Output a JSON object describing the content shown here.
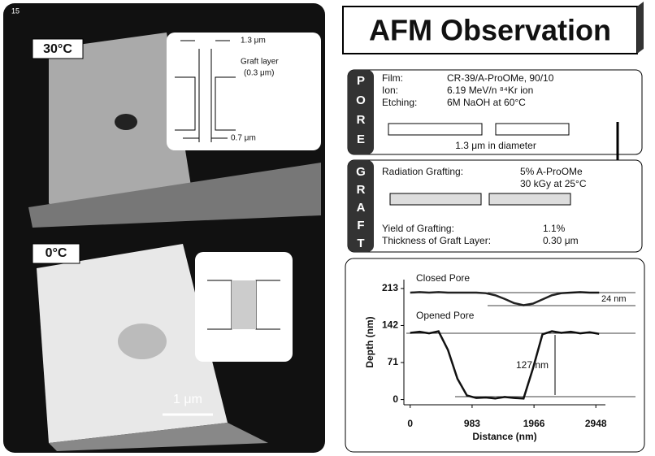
{
  "left": {
    "page_number": "15",
    "label_30": "30°C",
    "label_0": "0°C",
    "scale_bar": "1 μm",
    "inset": {
      "width": "1.3 μm",
      "graft_layer": "Graft layer",
      "graft_thickness": "(0.3 μm)",
      "inner_width": "0.7 μm"
    }
  },
  "title": "AFM Observation",
  "pore": {
    "tab": [
      "P",
      "O",
      "R",
      "E"
    ],
    "rows": [
      [
        "Film:",
        "CR-39/A-ProOMe, 90/10"
      ],
      [
        "Ion:",
        "6.19 MeV/n ⁸⁴Kr ion"
      ],
      [
        "Etching:",
        "6M NaOH at 60°C"
      ]
    ],
    "caption": "1.3 μm in diameter"
  },
  "graft": {
    "tab": [
      "G",
      "R",
      "A",
      "F",
      "T"
    ],
    "method": "Radiation Grafting:",
    "monomer": "5% A-ProOMe",
    "dose": "30 kGy at 25°C",
    "rows": [
      [
        "Yield of Grafting:",
        "1.1%"
      ],
      [
        "Thickness of Graft Layer:",
        "0.30 μm"
      ]
    ]
  },
  "chart_data": {
    "type": "line",
    "x_label": "Distance (nm)",
    "y_label": "Depth (nm)",
    "x": [
      0,
      150,
      300,
      450,
      600,
      750,
      900,
      1050,
      1200,
      1350,
      1500,
      1650,
      1800,
      1950,
      2100,
      2250,
      2400,
      2550,
      2700,
      2850,
      3000
    ],
    "series": [
      {
        "name": "Closed Pore",
        "color": "#222",
        "values": [
          205,
          206,
          205,
          206,
          205,
          205,
          205,
          205,
          204,
          200,
          193,
          185,
          181,
          184,
          192,
          200,
          204,
          205,
          206,
          205,
          205
        ]
      },
      {
        "name": "Opened Pore",
        "color": "#111",
        "values": [
          128,
          130,
          127,
          131,
          95,
          40,
          8,
          3,
          4,
          2,
          5,
          3,
          2,
          60,
          125,
          131,
          128,
          130,
          127,
          129,
          126
        ]
      }
    ],
    "xlim": [
      -100,
      3100
    ],
    "ylim": [
      -10,
      230
    ],
    "xticks": [
      0,
      983,
      1966,
      2948
    ],
    "yticks": [
      0,
      71,
      142,
      213
    ],
    "annotations": [
      "24 nm",
      "127 nm"
    ]
  }
}
